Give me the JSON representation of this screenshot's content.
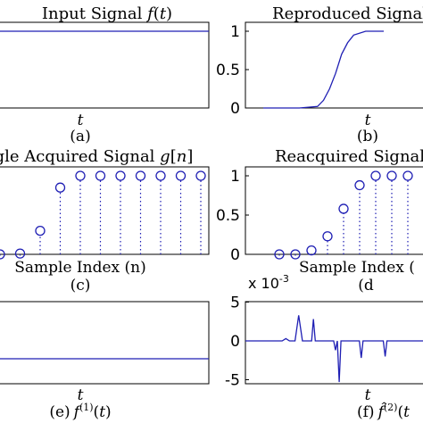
{
  "chart_data": [
    {
      "id": "a",
      "type": "line",
      "title": "Input Signal f(t)",
      "title_parts": [
        "Input Signal ",
        "f",
        "(",
        "t",
        ")"
      ],
      "xlabel": "t",
      "caption": "(a)",
      "yticks": [],
      "xlim": [
        0,
        1
      ],
      "ylim": [
        0,
        1.1
      ],
      "color": "#1f1fb4",
      "series": [
        {
          "x": [
            0,
            1
          ],
          "y": [
            1,
            1
          ]
        }
      ]
    },
    {
      "id": "b",
      "type": "line",
      "title": "Reproduced Signal",
      "xlabel": "t",
      "caption": "(b)",
      "yticks": [
        "0",
        "0.5",
        "1"
      ],
      "ytick_values": [
        0,
        0.5,
        1
      ],
      "xlim": [
        0,
        1
      ],
      "ylim": [
        0,
        1.1
      ],
      "color": "#1f1fb4",
      "series": [
        {
          "x": [
            0,
            0.3,
            0.45,
            0.5,
            0.55,
            0.6,
            0.65,
            0.7,
            0.75,
            0.85,
            1
          ],
          "y": [
            0,
            0,
            0.02,
            0.1,
            0.25,
            0.45,
            0.7,
            0.85,
            0.95,
            1,
            1
          ]
        }
      ]
    },
    {
      "id": "c",
      "type": "scatter",
      "title": "gle Acquired Signal g[n]",
      "title_parts": [
        "gle Acquired Signal ",
        "g",
        "[",
        "n",
        "]"
      ],
      "xlabel": "Sample Index (n)",
      "caption": "(c)",
      "yticks": [],
      "xlim": [
        0,
        10
      ],
      "ylim": [
        0,
        1.1
      ],
      "color": "#1f1fb4",
      "series": [
        {
          "x": [
            0,
            1,
            2,
            3,
            4,
            5,
            6,
            7,
            8,
            9,
            10
          ],
          "y": [
            0,
            0.01,
            0.3,
            0.85,
            1,
            1,
            1,
            1,
            1,
            1,
            1
          ]
        }
      ]
    },
    {
      "id": "d",
      "type": "scatter",
      "title": "Reacquired Signal",
      "xlabel": "Sample Index (",
      "caption": "(d",
      "yticks": [
        "0",
        "0.5",
        "1"
      ],
      "ytick_values": [
        0,
        0.5,
        1
      ],
      "xlim": [
        0,
        10
      ],
      "ylim": [
        0,
        1.1
      ],
      "color": "#1f1fb4",
      "series": [
        {
          "x": [
            1,
            2,
            3,
            4,
            5,
            6,
            7,
            8,
            9
          ],
          "y": [
            0,
            0,
            0.05,
            0.23,
            0.58,
            0.88,
            1,
            1,
            1
          ]
        }
      ]
    },
    {
      "id": "e",
      "type": "line",
      "title": "",
      "xlabel": "t",
      "caption": "(e) f(1)(t)",
      "yticks": [],
      "xlim": [
        0,
        1
      ],
      "ylim": [
        -1,
        1
      ],
      "color": "#1f1fb4",
      "series": [
        {
          "x": [
            0,
            1
          ],
          "y": [
            -0.2,
            -0.2
          ]
        }
      ]
    },
    {
      "id": "f",
      "type": "line",
      "title": "",
      "exponent_label": "x 10",
      "exponent_power": "-3",
      "xlabel": "t",
      "caption": "(f) f(2)(t",
      "yticks": [
        "5",
        "0",
        "-5"
      ],
      "ytick_values": [
        5,
        0,
        -5
      ],
      "xlim": [
        0,
        1
      ],
      "ylim": [
        -5.5,
        5.5
      ],
      "color": "#1f1fb4",
      "series": [
        {
          "x": [
            0,
            0.2,
            0.22,
            0.24,
            0.27,
            0.29,
            0.31,
            0.33,
            0.36,
            0.37,
            0.38,
            0.48,
            0.49,
            0.5,
            0.51,
            0.52,
            0.53,
            0.62,
            0.63,
            0.64,
            0.75,
            0.76,
            0.77,
            1
          ],
          "y": [
            0,
            0,
            0.3,
            0,
            0,
            3.3,
            0,
            0,
            0,
            2.8,
            0,
            0,
            -1.2,
            0,
            -5.3,
            0,
            0,
            0,
            -2.2,
            0,
            0,
            -2,
            0,
            0
          ]
        }
      ]
    }
  ]
}
